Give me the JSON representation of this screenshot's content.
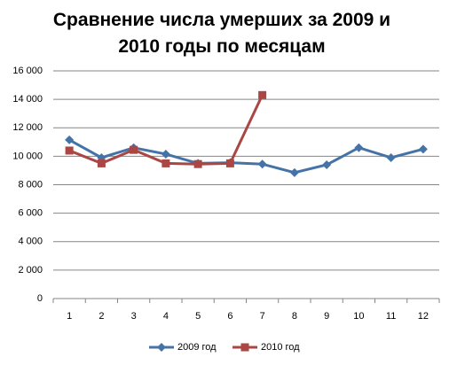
{
  "chart_data": {
    "type": "line",
    "title": "Сравнение числа умерших за 2009 и 2010 годы по месяцам",
    "categories": [
      "1",
      "2",
      "3",
      "4",
      "5",
      "6",
      "7",
      "8",
      "9",
      "10",
      "11",
      "12"
    ],
    "series": [
      {
        "name": "2009 год",
        "color": "#4572a7",
        "marker": "diamond",
        "values": [
          11150,
          9900,
          10600,
          10150,
          9500,
          9550,
          9450,
          8850,
          9400,
          10600,
          9900,
          10500
        ]
      },
      {
        "name": "2010 год",
        "color": "#aa4643",
        "marker": "square",
        "values": [
          10400,
          9500,
          10450,
          9500,
          9450,
          9500,
          14300,
          null,
          null,
          null,
          null,
          null
        ]
      }
    ],
    "ylim": [
      0,
      16000
    ],
    "yticks": [
      0,
      {
        "value": 2000,
        "label": "2 000"
      },
      {
        "value": 4000,
        "label": "4 000"
      },
      {
        "value": 6000,
        "label": "6 000"
      },
      {
        "value": 8000,
        "label": "8 000"
      },
      {
        "value": 10000,
        "label": "10 000"
      },
      {
        "value": 12000,
        "label": "12 000"
      },
      {
        "value": 14000,
        "label": "14 000"
      },
      {
        "value": 16000,
        "label": "16 000"
      }
    ],
    "grid": true,
    "legend": "bottom"
  }
}
